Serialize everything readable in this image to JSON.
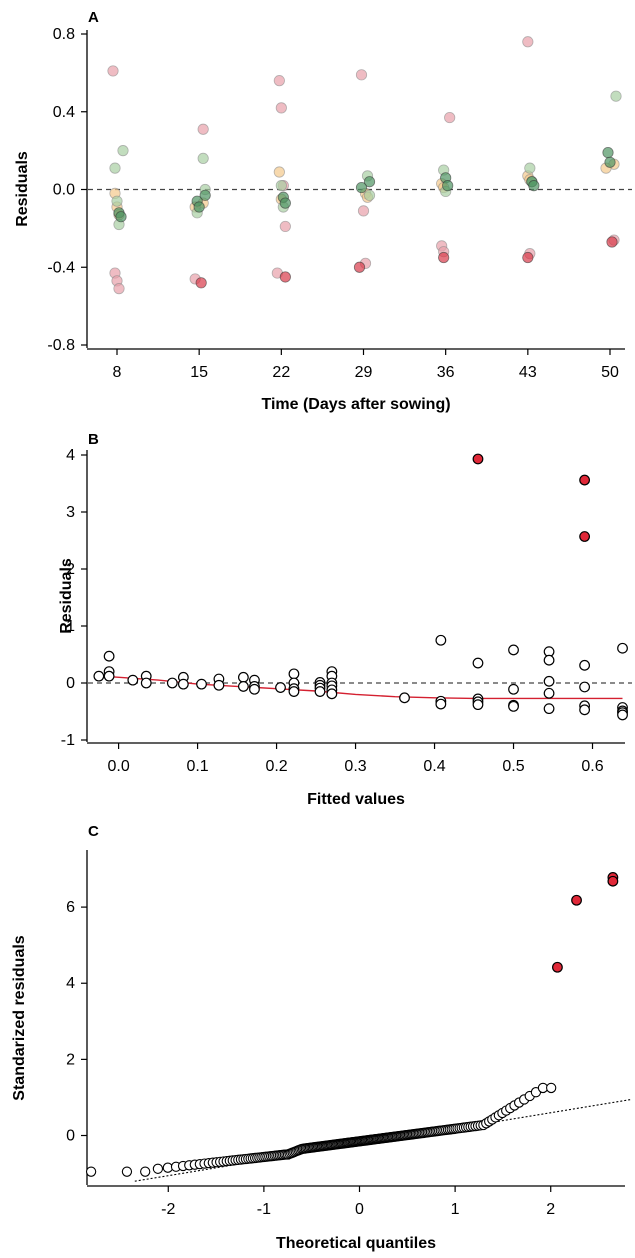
{
  "chart_data": [
    {
      "panel_label": "A",
      "type": "scatter",
      "xlabel": "Time (Days after sowing)",
      "ylabel": "Residuals",
      "categories": [
        "8",
        "15",
        "22",
        "29",
        "36",
        "43",
        "50"
      ],
      "ylim": [
        -0.8,
        0.8
      ],
      "yticks": [
        "-0.8",
        "-0.4",
        "0.0",
        "0.4",
        "0.8"
      ],
      "reference_line": 0,
      "series": [
        {
          "color": "#e8a0aa",
          "values": [
            [
              8,
              0.61
            ],
            [
              8,
              -0.43
            ],
            [
              8,
              -0.47
            ],
            [
              8,
              -0.51
            ],
            [
              15,
              0.31
            ],
            [
              15,
              -0.46
            ],
            [
              22,
              0.56
            ],
            [
              22,
              0.42
            ],
            [
              22,
              0.02
            ],
            [
              22,
              -0.19
            ],
            [
              22,
              -0.43
            ],
            [
              29,
              0.59
            ],
            [
              29,
              -0.11
            ],
            [
              29,
              -0.38
            ],
            [
              36,
              0.37
            ],
            [
              36,
              -0.29
            ],
            [
              36,
              -0.32
            ],
            [
              43,
              0.76
            ],
            [
              43,
              -0.33
            ],
            [
              50,
              -0.26
            ]
          ]
        },
        {
          "color": "#d93a4a",
          "values": [
            [
              15,
              -0.48
            ],
            [
              22,
              -0.45
            ],
            [
              29,
              -0.4
            ],
            [
              36,
              -0.35
            ],
            [
              43,
              -0.35
            ],
            [
              50,
              -0.27
            ]
          ]
        },
        {
          "color": "#f4c98c",
          "values": [
            [
              8,
              -0.02
            ],
            [
              8,
              -0.09
            ],
            [
              8,
              -0.13
            ],
            [
              15,
              -0.07
            ],
            [
              15,
              -0.09
            ],
            [
              22,
              0.09
            ],
            [
              22,
              -0.05
            ],
            [
              29,
              -0.02
            ],
            [
              29,
              -0.04
            ],
            [
              36,
              0.03
            ],
            [
              36,
              0.01
            ],
            [
              43,
              0.07
            ],
            [
              43,
              0.05
            ],
            [
              50,
              0.13
            ],
            [
              50,
              0.11
            ]
          ]
        },
        {
          "color": "#a8cfa2",
          "values": [
            [
              8,
              0.2
            ],
            [
              8,
              0.11
            ],
            [
              8,
              -0.06
            ],
            [
              8,
              -0.18
            ],
            [
              15,
              0.16
            ],
            [
              15,
              0.0
            ],
            [
              15,
              -0.12
            ],
            [
              22,
              0.02
            ],
            [
              22,
              -0.09
            ],
            [
              29,
              0.07
            ],
            [
              29,
              -0.03
            ],
            [
              36,
              0.1
            ],
            [
              36,
              -0.01
            ],
            [
              43,
              0.11
            ],
            [
              43,
              0.04
            ],
            [
              50,
              0.48
            ]
          ]
        },
        {
          "color": "#4e9462",
          "values": [
            [
              8,
              -0.12
            ],
            [
              8,
              -0.14
            ],
            [
              15,
              -0.03
            ],
            [
              15,
              -0.06
            ],
            [
              15,
              -0.09
            ],
            [
              22,
              -0.04
            ],
            [
              22,
              -0.07
            ],
            [
              29,
              0.04
            ],
            [
              29,
              0.01
            ],
            [
              36,
              0.06
            ],
            [
              36,
              0.02
            ],
            [
              43,
              0.04
            ],
            [
              43,
              0.02
            ],
            [
              50,
              0.19
            ],
            [
              50,
              0.14
            ]
          ]
        }
      ]
    },
    {
      "panel_label": "B",
      "type": "scatter",
      "xlabel": "Fitted values",
      "ylabel": "Residuals",
      "xlim": [
        -0.04,
        0.65
      ],
      "ylim": [
        -1,
        4
      ],
      "xticks": [
        "0.0",
        "0.1",
        "0.2",
        "0.3",
        "0.4",
        "0.5",
        "0.6"
      ],
      "yticks": [
        "-1",
        "0",
        "1",
        "2",
        "3",
        "4"
      ],
      "reference_line": 0,
      "points": [
        [
          -0.025,
          0.12
        ],
        [
          -0.012,
          0.47
        ],
        [
          -0.012,
          0.2
        ],
        [
          -0.012,
          0.12
        ],
        [
          0.018,
          0.05
        ],
        [
          0.035,
          0.12
        ],
        [
          0.035,
          0.0
        ],
        [
          0.068,
          0.0
        ],
        [
          0.082,
          0.1
        ],
        [
          0.082,
          -0.02
        ],
        [
          0.105,
          -0.02
        ],
        [
          0.127,
          0.07
        ],
        [
          0.127,
          -0.04
        ],
        [
          0.158,
          0.1
        ],
        [
          0.158,
          -0.06
        ],
        [
          0.172,
          0.05
        ],
        [
          0.172,
          -0.06
        ],
        [
          0.172,
          -0.11
        ],
        [
          0.205,
          -0.08
        ],
        [
          0.222,
          0.16
        ],
        [
          0.222,
          0.0
        ],
        [
          0.222,
          -0.1
        ],
        [
          0.222,
          -0.15
        ],
        [
          0.255,
          0.01
        ],
        [
          0.255,
          -0.04
        ],
        [
          0.255,
          -0.09
        ],
        [
          0.255,
          -0.15
        ],
        [
          0.27,
          0.2
        ],
        [
          0.27,
          0.12
        ],
        [
          0.27,
          0.0
        ],
        [
          0.27,
          -0.05
        ],
        [
          0.27,
          -0.12
        ],
        [
          0.27,
          -0.19
        ],
        [
          0.362,
          -0.26
        ],
        [
          0.408,
          0.75
        ],
        [
          0.408,
          -0.32
        ],
        [
          0.408,
          -0.37
        ],
        [
          0.455,
          0.35
        ],
        [
          0.455,
          -0.28
        ],
        [
          0.455,
          -0.33
        ],
        [
          0.455,
          -0.38
        ],
        [
          0.5,
          0.58
        ],
        [
          0.5,
          -0.11
        ],
        [
          0.5,
          -0.39
        ],
        [
          0.5,
          -0.41
        ],
        [
          0.545,
          0.55
        ],
        [
          0.545,
          0.4
        ],
        [
          0.545,
          0.03
        ],
        [
          0.545,
          -0.18
        ],
        [
          0.545,
          -0.45
        ],
        [
          0.59,
          0.31
        ],
        [
          0.59,
          -0.07
        ],
        [
          0.59,
          -0.4
        ],
        [
          0.59,
          -0.47
        ],
        [
          0.638,
          0.61
        ],
        [
          0.638,
          -0.43
        ],
        [
          0.638,
          -0.49
        ],
        [
          0.638,
          -0.52
        ],
        [
          0.638,
          -0.56
        ]
      ],
      "highlighted_points": [
        [
          0.455,
          3.93
        ],
        [
          0.59,
          3.56
        ],
        [
          0.59,
          2.57
        ]
      ],
      "smoother": [
        [
          -0.02,
          0.12
        ],
        [
          0.05,
          0.05
        ],
        [
          0.1,
          -0.02
        ],
        [
          0.15,
          -0.06
        ],
        [
          0.2,
          -0.1
        ],
        [
          0.25,
          -0.14
        ],
        [
          0.3,
          -0.2
        ],
        [
          0.35,
          -0.24
        ],
        [
          0.4,
          -0.26
        ],
        [
          0.45,
          -0.27
        ],
        [
          0.5,
          -0.27
        ],
        [
          0.55,
          -0.27
        ],
        [
          0.6,
          -0.27
        ],
        [
          0.638,
          -0.27
        ]
      ]
    },
    {
      "panel_label": "C",
      "type": "scatter",
      "xlabel": "Theoretical quantiles",
      "ylabel": "Standarized residuals",
      "xlim": [
        -2.85,
        2.85
      ],
      "ylim": [
        -1.3,
        7.5
      ],
      "xticks": [
        "-2",
        "-1",
        "0",
        "1",
        "2"
      ],
      "yticks": [
        "0",
        "2",
        "4",
        "6"
      ],
      "qq_reference_line": [
        [
          -2.35,
          -1.2
        ],
        [
          2.85,
          0.95
        ]
      ],
      "highlighted_points": [
        [
          2.07,
          4.42
        ],
        [
          2.27,
          6.18
        ],
        [
          2.65,
          6.78
        ],
        [
          2.65,
          6.68
        ]
      ]
    }
  ]
}
